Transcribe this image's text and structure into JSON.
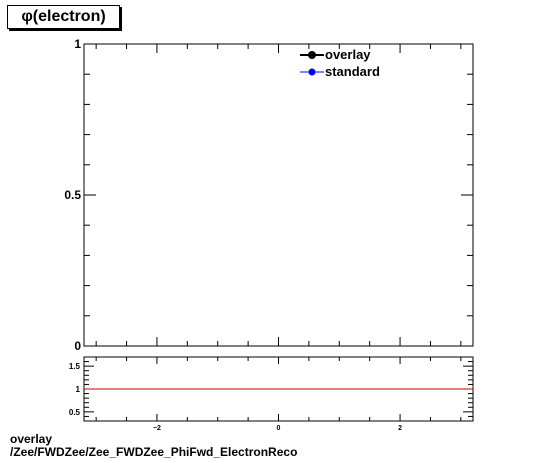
{
  "title": "φ(electron)",
  "footer": {
    "line1": "overlay",
    "line2": "/Zee/FWDZee/Zee_FWDZee_PhiFwd_ElectronReco"
  },
  "chart_data": [
    {
      "type": "line",
      "title": "φ(electron)",
      "xlim": [
        -3.2,
        3.2
      ],
      "ylim": [
        0,
        1
      ],
      "y_ticks": [
        0,
        0.5,
        1
      ],
      "x_ticks": [
        -2,
        0,
        2
      ],
      "legend_position": "top-right",
      "series": [
        {
          "name": "overlay",
          "color": "#000000",
          "values": []
        },
        {
          "name": "standard",
          "color": "#0000ff",
          "values": []
        }
      ]
    },
    {
      "type": "line",
      "title": "",
      "xlim": [
        -3.2,
        3.2
      ],
      "ylim": [
        0.3,
        1.7
      ],
      "y_ticks": [
        0.5,
        1,
        1.5
      ],
      "x_ticks": [
        -2,
        0,
        2
      ],
      "reference_line": {
        "y": 1,
        "color": "#cc0000"
      },
      "series": []
    }
  ]
}
